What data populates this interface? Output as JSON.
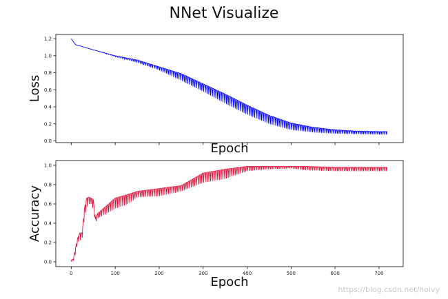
{
  "figure_title": "NNet Visualize",
  "watermark": "https://blog.csdn.net/heivy",
  "colors": {
    "loss": "#0000ff",
    "accuracy": "#dc143c"
  },
  "chart_data": [
    {
      "type": "line",
      "name": "loss-panel",
      "title": "",
      "xlabel": "Epoch",
      "ylabel": "Loss",
      "xlim": [
        -35,
        755
      ],
      "ylim": [
        -0.02,
        1.25
      ],
      "yticks": [
        0.0,
        0.2,
        0.4,
        0.6,
        0.8,
        1.0,
        1.2
      ],
      "ytick_labels": [
        "0.0",
        "0.2",
        "0.4",
        "0.6",
        "0.8",
        "1.0",
        "1.2"
      ],
      "xticks": [
        0,
        100,
        200,
        300,
        400,
        500,
        600,
        700
      ],
      "xtick_labels_visible": false,
      "grid": false,
      "series": [
        {
          "x_start": 0,
          "x_end": 719,
          "points_upper": [
            [
              0,
              1.2
            ],
            [
              10,
              1.13
            ],
            [
              50,
              1.07
            ],
            [
              100,
              1.0
            ],
            [
              150,
              0.95
            ],
            [
              200,
              0.87
            ],
            [
              250,
              0.79
            ],
            [
              300,
              0.67
            ],
            [
              350,
              0.55
            ],
            [
              400,
              0.42
            ],
            [
              450,
              0.3
            ],
            [
              500,
              0.21
            ],
            [
              550,
              0.16
            ],
            [
              600,
              0.13
            ],
            [
              650,
              0.115
            ],
            [
              700,
              0.11
            ],
            [
              719,
              0.11
            ]
          ],
          "points_lower": [
            [
              0,
              1.2
            ],
            [
              10,
              1.13
            ],
            [
              50,
              1.07
            ],
            [
              100,
              0.99
            ],
            [
              150,
              0.92
            ],
            [
              200,
              0.83
            ],
            [
              250,
              0.71
            ],
            [
              300,
              0.58
            ],
            [
              350,
              0.44
            ],
            [
              400,
              0.31
            ],
            [
              450,
              0.2
            ],
            [
              500,
              0.13
            ],
            [
              550,
              0.1
            ],
            [
              600,
              0.085
            ],
            [
              650,
              0.08
            ],
            [
              700,
              0.075
            ],
            [
              719,
              0.075
            ]
          ]
        }
      ]
    },
    {
      "type": "line",
      "name": "accuracy-panel",
      "title": "",
      "xlabel": "Epoch",
      "ylabel": "Accuracy",
      "xlim": [
        -35,
        755
      ],
      "ylim": [
        -0.05,
        1.05
      ],
      "yticks": [
        0.0,
        0.2,
        0.4,
        0.6,
        0.8,
        1.0
      ],
      "ytick_labels": [
        "0.0",
        "0.2",
        "0.4",
        "0.6",
        "0.8",
        "1.0"
      ],
      "xticks": [
        0,
        100,
        200,
        300,
        400,
        500,
        600,
        700
      ],
      "xtick_labels": [
        "0",
        "100",
        "200",
        "300",
        "400",
        "500",
        "600",
        "700"
      ],
      "grid": false,
      "series": [
        {
          "x_start": 0,
          "x_end": 719,
          "points_upper": [
            [
              0,
              0.02
            ],
            [
              5,
              0.03
            ],
            [
              10,
              0.15
            ],
            [
              15,
              0.25
            ],
            [
              20,
              0.3
            ],
            [
              25,
              0.3
            ],
            [
              30,
              0.55
            ],
            [
              35,
              0.66
            ],
            [
              40,
              0.67
            ],
            [
              45,
              0.66
            ],
            [
              50,
              0.65
            ],
            [
              55,
              0.45
            ],
            [
              60,
              0.5
            ],
            [
              80,
              0.58
            ],
            [
              100,
              0.66
            ],
            [
              130,
              0.7
            ],
            [
              150,
              0.73
            ],
            [
              200,
              0.76
            ],
            [
              250,
              0.79
            ],
            [
              300,
              0.92
            ],
            [
              350,
              0.96
            ],
            [
              400,
              0.99
            ],
            [
              450,
              0.99
            ],
            [
              500,
              0.99
            ],
            [
              530,
              0.99
            ],
            [
              600,
              0.98
            ],
            [
              719,
              0.98
            ]
          ],
          "points_lower": [
            [
              0,
              0.0
            ],
            [
              5,
              0.01
            ],
            [
              10,
              0.08
            ],
            [
              15,
              0.2
            ],
            [
              20,
              0.22
            ],
            [
              25,
              0.25
            ],
            [
              30,
              0.45
            ],
            [
              35,
              0.55
            ],
            [
              40,
              0.6
            ],
            [
              45,
              0.6
            ],
            [
              50,
              0.55
            ],
            [
              55,
              0.4
            ],
            [
              60,
              0.45
            ],
            [
              80,
              0.5
            ],
            [
              100,
              0.55
            ],
            [
              130,
              0.6
            ],
            [
              150,
              0.67
            ],
            [
              200,
              0.68
            ],
            [
              250,
              0.73
            ],
            [
              300,
              0.82
            ],
            [
              350,
              0.86
            ],
            [
              400,
              0.94
            ],
            [
              450,
              0.96
            ],
            [
              500,
              0.97
            ],
            [
              530,
              0.95
            ],
            [
              600,
              0.94
            ],
            [
              719,
              0.94
            ]
          ]
        }
      ]
    }
  ]
}
